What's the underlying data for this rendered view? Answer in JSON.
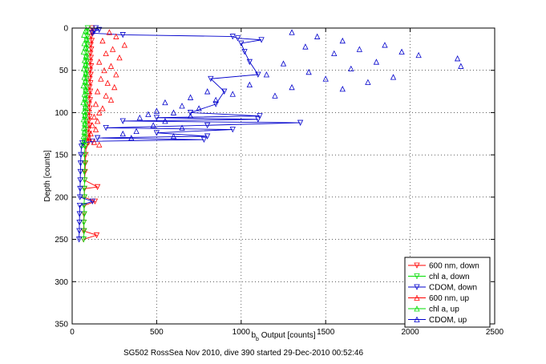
{
  "chart_data": {
    "type": "scatter",
    "title": "",
    "xlabel_main": "b",
    "xlabel_sub": "b",
    "xlabel_rest": " Output [counts]",
    "ylabel": "Depth [counts]",
    "caption": "SG502 RossSea Nov 2010, dive 390 started 29-Dec-2010 00:52:46",
    "xlim": [
      0,
      2500
    ],
    "ylim": [
      0,
      350
    ],
    "y_reversed": true,
    "grid": true,
    "legend_position": "bottom-right",
    "xticks": [
      0,
      500,
      1000,
      1500,
      2000,
      2500
    ],
    "yticks": [
      0,
      50,
      100,
      150,
      200,
      250,
      300,
      350
    ],
    "series": [
      {
        "name": "600 nm, down",
        "color": "#ff0000",
        "marker": "down",
        "line": true,
        "points": [
          [
            118,
            0
          ],
          [
            115,
            5
          ],
          [
            112,
            10
          ],
          [
            116,
            15
          ],
          [
            110,
            20
          ],
          [
            113,
            25
          ],
          [
            108,
            30
          ],
          [
            111,
            35
          ],
          [
            107,
            40
          ],
          [
            112,
            45
          ],
          [
            106,
            50
          ],
          [
            110,
            55
          ],
          [
            104,
            60
          ],
          [
            108,
            65
          ],
          [
            103,
            70
          ],
          [
            107,
            75
          ],
          [
            102,
            80
          ],
          [
            106,
            85
          ],
          [
            100,
            90
          ],
          [
            104,
            95
          ],
          [
            100,
            100
          ],
          [
            103,
            105
          ],
          [
            98,
            110
          ],
          [
            101,
            115
          ],
          [
            96,
            120
          ],
          [
            100,
            125
          ],
          [
            95,
            130
          ],
          [
            98,
            135
          ],
          [
            82,
            140
          ],
          [
            80,
            150
          ],
          [
            78,
            160
          ],
          [
            76,
            170
          ],
          [
            74,
            180
          ],
          [
            150,
            188
          ],
          [
            73,
            190
          ],
          [
            72,
            200
          ],
          [
            135,
            205
          ],
          [
            71,
            210
          ],
          [
            70,
            220
          ],
          [
            69,
            230
          ],
          [
            68,
            240
          ],
          [
            145,
            245
          ],
          [
            67,
            250
          ]
        ]
      },
      {
        "name": "chl a, down",
        "color": "#00dd00",
        "marker": "down",
        "line": true,
        "points": [
          [
            92,
            0
          ],
          [
            88,
            5
          ],
          [
            90,
            10
          ],
          [
            86,
            15
          ],
          [
            89,
            20
          ],
          [
            85,
            25
          ],
          [
            88,
            30
          ],
          [
            84,
            35
          ],
          [
            87,
            40
          ],
          [
            83,
            45
          ],
          [
            86,
            50
          ],
          [
            82,
            55
          ],
          [
            85,
            60
          ],
          [
            81,
            65
          ],
          [
            84,
            70
          ],
          [
            80,
            75
          ],
          [
            83,
            80
          ],
          [
            79,
            85
          ],
          [
            82,
            90
          ],
          [
            78,
            95
          ],
          [
            81,
            100
          ],
          [
            77,
            105
          ],
          [
            80,
            110
          ],
          [
            76,
            115
          ],
          [
            79,
            120
          ],
          [
            75,
            125
          ],
          [
            78,
            130
          ],
          [
            74,
            135
          ],
          [
            76,
            140
          ],
          [
            73,
            150
          ],
          [
            75,
            160
          ],
          [
            72,
            170
          ],
          [
            74,
            180
          ],
          [
            71,
            190
          ],
          [
            73,
            200
          ],
          [
            70,
            210
          ],
          [
            72,
            220
          ],
          [
            69,
            230
          ],
          [
            71,
            240
          ],
          [
            68,
            250
          ]
        ]
      },
      {
        "name": "CDOM, down",
        "color": "#0000cc",
        "marker": "down",
        "line": true,
        "points": [
          [
            140,
            0
          ],
          [
            160,
            2
          ],
          [
            130,
            4
          ],
          [
            120,
            6
          ],
          [
            300,
            8
          ],
          [
            950,
            10
          ],
          [
            980,
            12
          ],
          [
            1120,
            14
          ],
          [
            1000,
            18
          ],
          [
            1020,
            28
          ],
          [
            1050,
            40
          ],
          [
            1100,
            55
          ],
          [
            820,
            60
          ],
          [
            900,
            75
          ],
          [
            850,
            90
          ],
          [
            700,
            100
          ],
          [
            1110,
            104
          ],
          [
            500,
            106
          ],
          [
            1100,
            108
          ],
          [
            300,
            110
          ],
          [
            1350,
            112
          ],
          [
            800,
            115
          ],
          [
            200,
            118
          ],
          [
            950,
            120
          ],
          [
            500,
            124
          ],
          [
            800,
            128
          ],
          [
            150,
            130
          ],
          [
            780,
            132
          ],
          [
            120,
            134
          ],
          [
            60,
            136
          ],
          [
            55,
            140
          ],
          [
            52,
            150
          ],
          [
            50,
            160
          ],
          [
            49,
            170
          ],
          [
            48,
            180
          ],
          [
            47,
            190
          ],
          [
            46,
            200
          ],
          [
            120,
            205
          ],
          [
            45,
            210
          ],
          [
            44,
            220
          ],
          [
            43,
            230
          ],
          [
            42,
            240
          ],
          [
            41,
            250
          ]
        ]
      },
      {
        "name": "600 nm, up",
        "color": "#ff0000",
        "marker": "up",
        "line": false,
        "points": [
          [
            220,
            5
          ],
          [
            260,
            10
          ],
          [
            180,
            15
          ],
          [
            310,
            20
          ],
          [
            240,
            25
          ],
          [
            200,
            30
          ],
          [
            280,
            35
          ],
          [
            160,
            40
          ],
          [
            230,
            45
          ],
          [
            190,
            50
          ],
          [
            260,
            55
          ],
          [
            170,
            60
          ],
          [
            210,
            65
          ],
          [
            250,
            70
          ],
          [
            150,
            75
          ],
          [
            200,
            80
          ],
          [
            230,
            85
          ],
          [
            140,
            90
          ],
          [
            180,
            95
          ],
          [
            160,
            100
          ],
          [
            130,
            105
          ],
          [
            150,
            110
          ],
          [
            120,
            115
          ],
          [
            140,
            120
          ],
          [
            110,
            125
          ],
          [
            100,
            130
          ],
          [
            130,
            135
          ],
          [
            160,
            138
          ]
        ]
      },
      {
        "name": "chl a, up",
        "color": "#00dd00",
        "marker": "up",
        "line": false,
        "points": [
          [
            80,
            3
          ],
          [
            70,
            8
          ],
          [
            85,
            13
          ],
          [
            72,
            18
          ],
          [
            78,
            23
          ],
          [
            68,
            28
          ],
          [
            82,
            33
          ],
          [
            74,
            38
          ],
          [
            79,
            43
          ],
          [
            69,
            48
          ],
          [
            81,
            53
          ],
          [
            72,
            58
          ],
          [
            77,
            63
          ],
          [
            67,
            68
          ],
          [
            80,
            73
          ],
          [
            73,
            78
          ],
          [
            76,
            83
          ],
          [
            66,
            88
          ],
          [
            78,
            93
          ],
          [
            71,
            98
          ],
          [
            75,
            103
          ],
          [
            68,
            108
          ],
          [
            74,
            113
          ],
          [
            70,
            118
          ],
          [
            72,
            123
          ],
          [
            68,
            128
          ],
          [
            70,
            133
          ],
          [
            66,
            138
          ]
        ]
      },
      {
        "name": "CDOM, up",
        "color": "#0000cc",
        "marker": "up",
        "line": false,
        "points": [
          [
            1300,
            5
          ],
          [
            1450,
            10
          ],
          [
            1600,
            15
          ],
          [
            1850,
            20
          ],
          [
            1380,
            22
          ],
          [
            1700,
            25
          ],
          [
            1950,
            28
          ],
          [
            1550,
            30
          ],
          [
            2050,
            32
          ],
          [
            2280,
            36
          ],
          [
            1800,
            40
          ],
          [
            1250,
            42
          ],
          [
            2300,
            45
          ],
          [
            1650,
            48
          ],
          [
            1400,
            52
          ],
          [
            1150,
            55
          ],
          [
            1900,
            58
          ],
          [
            1500,
            60
          ],
          [
            1750,
            64
          ],
          [
            1050,
            67
          ],
          [
            1300,
            70
          ],
          [
            1600,
            72
          ],
          [
            800,
            75
          ],
          [
            950,
            78
          ],
          [
            1200,
            80
          ],
          [
            700,
            82
          ],
          [
            850,
            85
          ],
          [
            550,
            88
          ],
          [
            650,
            92
          ],
          [
            750,
            95
          ],
          [
            500,
            98
          ],
          [
            600,
            100
          ],
          [
            450,
            102
          ],
          [
            700,
            104
          ],
          [
            400,
            106
          ],
          [
            550,
            110
          ],
          [
            480,
            115
          ],
          [
            650,
            118
          ],
          [
            380,
            122
          ],
          [
            300,
            125
          ],
          [
            600,
            128
          ],
          [
            350,
            130
          ]
        ]
      }
    ]
  }
}
